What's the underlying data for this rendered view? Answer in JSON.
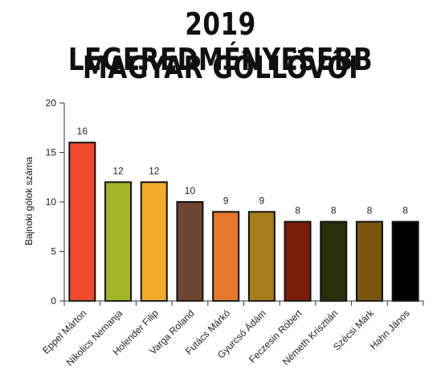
{
  "title_lines": [
    "2019 LEGEREDMÉNYESEBB",
    "MAGYAR GÓLLÖVŐI"
  ],
  "chart_data": {
    "type": "bar",
    "title": "2019 LEGEREDMÉNYESEBB MAGYAR GÓLLÖVŐI",
    "xlabel": "",
    "ylabel": "Bajnoki gólok száma",
    "ylim": [
      0,
      20
    ],
    "yticks": [
      0,
      5,
      10,
      15,
      20
    ],
    "grid": false,
    "categories": [
      "Eppel Márton",
      "Nikolics Nemanja",
      "Holender Filip",
      "Varga Roland",
      "Futács Márkó",
      "Gyurcsó Ádám",
      "Feczesin Róbert",
      "Németh Krisztián",
      "Szécsi Márk",
      "Hahn János"
    ],
    "values": [
      16,
      12,
      12,
      10,
      9,
      9,
      8,
      8,
      8,
      8
    ],
    "colors": [
      "#f24a2c",
      "#a5b52a",
      "#f2ac2a",
      "#6e4530",
      "#e5782c",
      "#a97c1c",
      "#7a1c0c",
      "#2c2e0c",
      "#7a560e",
      "#000000"
    ]
  }
}
